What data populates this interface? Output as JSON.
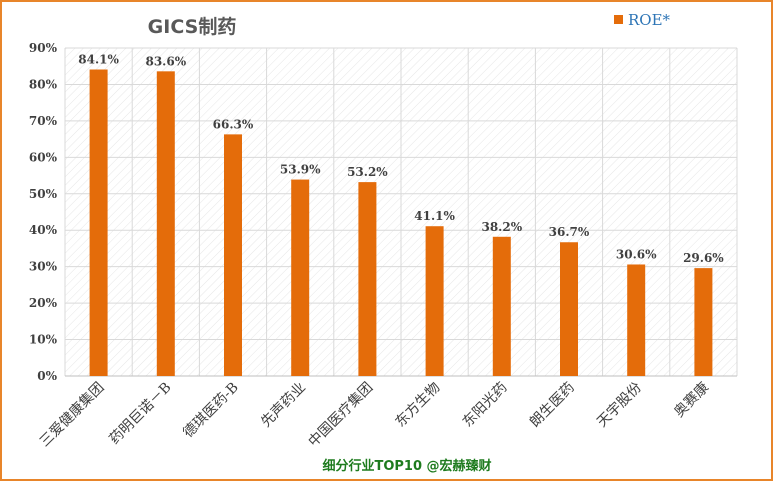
{
  "chart_data": {
    "type": "bar",
    "title": "GICS制药",
    "categories": [
      "三爱健康集团",
      "药明巨诺－B",
      "德琪医药-B",
      "先声药业",
      "中国医疗集团",
      "东方生物",
      "东阳光药",
      "朗生医药",
      "天宇股份",
      "奥赛康"
    ],
    "series": [
      {
        "name": "ROE*",
        "values": [
          84.1,
          83.6,
          66.3,
          53.9,
          53.2,
          41.1,
          38.2,
          36.7,
          30.6,
          29.6
        ]
      }
    ],
    "data_labels": [
      "84.1%",
      "83.6%",
      "66.3%",
      "53.9%",
      "53.2%",
      "41.1%",
      "38.2%",
      "36.7%",
      "30.6%",
      "29.6%"
    ],
    "y_ticks": [
      "0%",
      "10%",
      "20%",
      "30%",
      "40%",
      "50%",
      "60%",
      "70%",
      "80%",
      "90%"
    ],
    "ylim": [
      0,
      90
    ],
    "ystep": 10,
    "legend_position": "top-right",
    "grid": true,
    "colors": {
      "bar": "#e46c0a",
      "frame": "#e8852a",
      "grid": "#d9d9d9",
      "legend_text": "#2e75b6",
      "footer_text": "#1e7b1e"
    }
  },
  "footer": "细分行业TOP10 @宏赫臻财"
}
